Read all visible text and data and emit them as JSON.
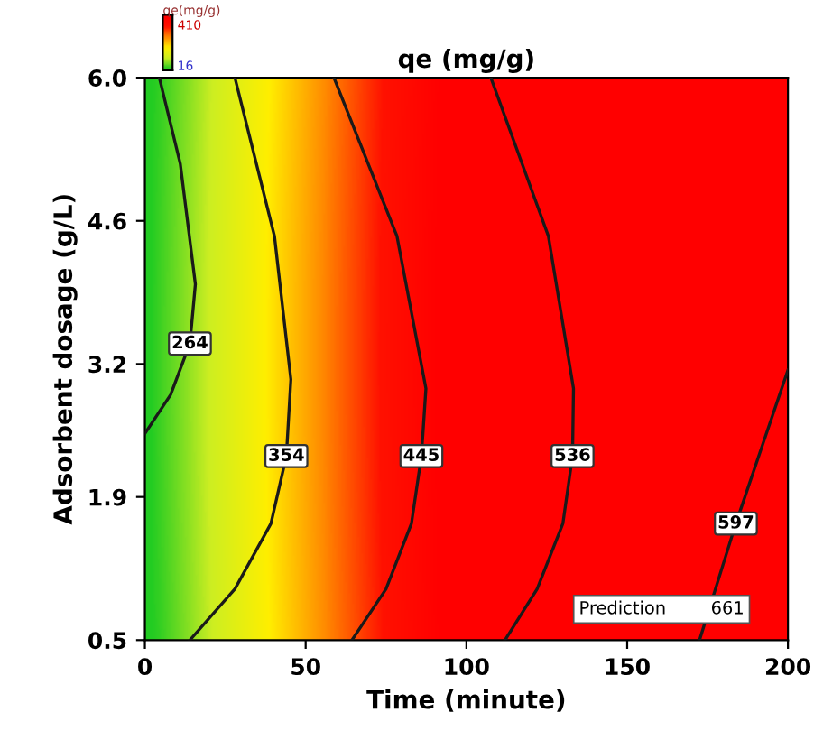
{
  "chart_data": {
    "type": "line",
    "title": "qe (mg/g)",
    "xlabel": "Time (minute)",
    "ylabel": "Adsorbent dosage (g/L)",
    "xlim": [
      0,
      200
    ],
    "xticks": [
      0,
      50,
      100,
      150,
      200
    ],
    "ylim": [
      0.5,
      6.0
    ],
    "yticks": [
      0.5,
      1.9,
      3.2,
      4.6,
      {
        "value": 6.0,
        "label": "6.0"
      }
    ],
    "grid": false,
    "line_style": "solid",
    "series": [
      {
        "name": "264",
        "color": "#1a1a1a",
        "x": [
          4.5,
          11,
          15.7,
          14,
          8,
          0
        ],
        "values": [
          6.0,
          5.16,
          3.98,
          3.4,
          2.9,
          2.52
        ]
      },
      {
        "name": "354",
        "color": "#1a1a1a",
        "x": [
          28,
          40.3,
          45.4,
          44,
          39.2,
          28,
          14
        ],
        "values": [
          6.0,
          4.45,
          3.05,
          2.3,
          1.64,
          1.0,
          0.5
        ]
      },
      {
        "name": "445",
        "color": "#1a1a1a",
        "x": [
          58.8,
          78.4,
          87.4,
          86,
          82.9,
          75,
          64.4
        ],
        "values": [
          6.0,
          4.45,
          2.96,
          2.3,
          1.64,
          1.0,
          0.5
        ]
      },
      {
        "name": "536",
        "color": "#1a1a1a",
        "x": [
          107.6,
          125.5,
          133.3,
          133,
          130,
          122,
          112
        ],
        "values": [
          6.0,
          4.45,
          2.96,
          2.3,
          1.64,
          1.0,
          0.5
        ]
      },
      {
        "name": "597",
        "color": "#1a1a1a",
        "x": [
          172.5,
          183.8,
          192,
          200
        ],
        "values": [
          0.5,
          1.64,
          2.4,
          3.14
        ]
      }
    ],
    "annotations": [
      "Prediction        661",
      "qe(mg/g)",
      "410",
      "16"
    ]
  }
}
